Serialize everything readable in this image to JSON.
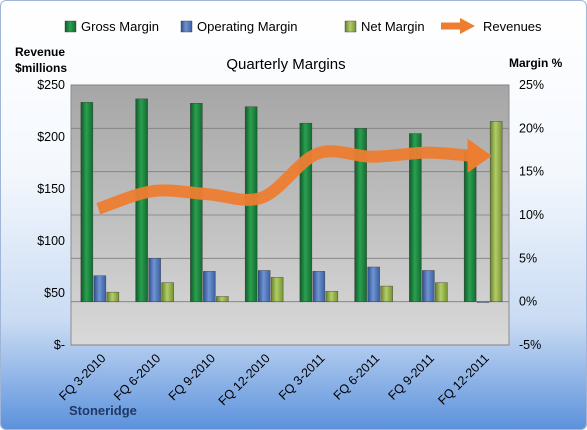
{
  "chart_data": {
    "type": "bar",
    "title": "Quarterly Margins",
    "categories": [
      "FQ 3-2010",
      "FQ 6-2010",
      "FQ 9-2010",
      "FQ 12-2010",
      "FQ 3-2011",
      "FQ 6-2011",
      "FQ 9-2011",
      "FQ 12-2011"
    ],
    "series": [
      {
        "name": "Gross Margin",
        "axis": "right",
        "kind": "bar",
        "color": "#1e7a3c",
        "values": [
          23,
          23.4,
          22.9,
          22.5,
          20.6,
          20,
          19.4,
          17.4
        ]
      },
      {
        "name": "Operating Margin",
        "axis": "right",
        "kind": "bar",
        "color": "#4a6fb2",
        "values": [
          3,
          5,
          3.5,
          3.6,
          3.5,
          4,
          3.6,
          0
        ]
      },
      {
        "name": "Net Margin",
        "axis": "right",
        "kind": "bar",
        "color": "#8aa840",
        "values": [
          1.1,
          2.2,
          0.6,
          2.8,
          1.2,
          1.8,
          2.2,
          20.8
        ]
      },
      {
        "name": "Revenues",
        "axis": "left",
        "kind": "line",
        "color": "#ed7d31",
        "values": [
          131,
          148,
          145,
          142,
          184,
          181,
          185,
          181
        ]
      }
    ],
    "y_left": {
      "label_line1": "Revenue",
      "label_line2": "$millions",
      "min": 0,
      "max": 250,
      "ticks": [
        0,
        50,
        100,
        150,
        200,
        250
      ],
      "tick_labels": [
        "$-",
        "$50",
        "$100",
        "$150",
        "$200",
        "$250"
      ]
    },
    "y_right": {
      "label": "Margin %",
      "min": -5,
      "max": 25,
      "ticks": [
        -5,
        0,
        5,
        10,
        15,
        20,
        25
      ],
      "tick_labels": [
        "-5%",
        "0%",
        "5%",
        "10%",
        "15%",
        "20%",
        "25%"
      ]
    },
    "legend_position": "top",
    "grid": true,
    "plot_background": "#c0c0c0"
  },
  "company": "Stoneridge"
}
